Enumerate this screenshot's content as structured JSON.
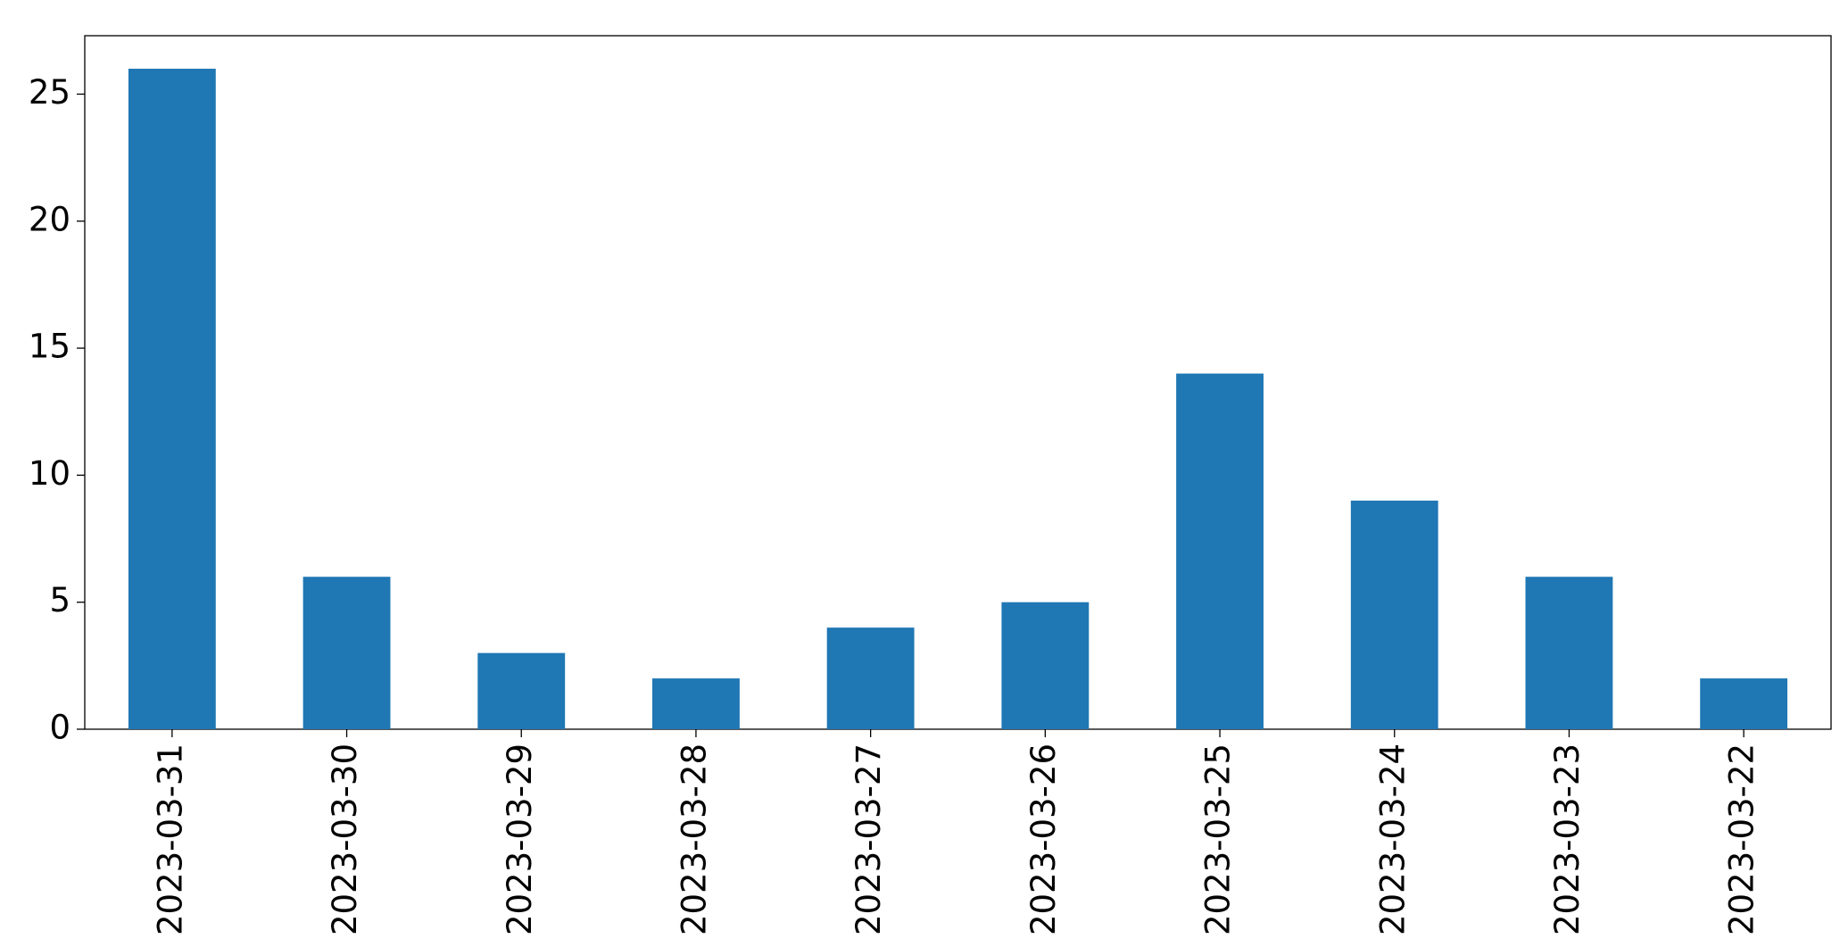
{
  "chart_data": {
    "type": "bar",
    "categories": [
      "2023-03-31",
      "2023-03-30",
      "2023-03-29",
      "2023-03-28",
      "2023-03-27",
      "2023-03-26",
      "2023-03-25",
      "2023-03-24",
      "2023-03-23",
      "2023-03-22"
    ],
    "values": [
      26,
      6,
      3,
      2,
      4,
      5,
      14,
      9,
      6,
      2
    ],
    "color": "#1f77b4",
    "ylim": [
      0,
      27.3
    ],
    "yticks": [
      0,
      5,
      10,
      15,
      20,
      25
    ],
    "grid": false
  }
}
